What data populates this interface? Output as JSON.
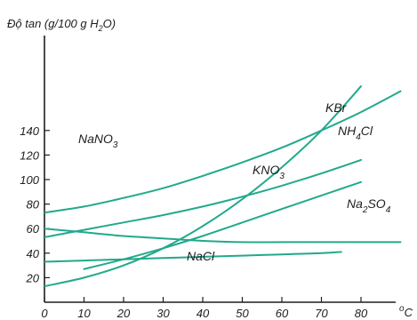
{
  "chart_data": {
    "type": "line",
    "ylabel": "Độ tan (g/100 g H2O)",
    "xunit": "°C",
    "xlim": [
      0,
      90
    ],
    "ylim": [
      0,
      160
    ],
    "x_ticks": [
      0,
      10,
      20,
      30,
      40,
      50,
      60,
      70,
      80
    ],
    "y_ticks": [
      20,
      40,
      60,
      80,
      100,
      120,
      140
    ],
    "line_color": "#22a98c",
    "series": [
      {
        "name": "NaNO3",
        "x": [
          0,
          10,
          20,
          30,
          40,
          50,
          60,
          70,
          80,
          90
        ],
        "y": [
          73,
          78,
          85,
          93,
          103,
          114,
          126,
          140,
          155,
          172
        ]
      },
      {
        "name": "KBr",
        "x": [
          0,
          10,
          20,
          30,
          40,
          50,
          60,
          70,
          80
        ],
        "y": [
          53,
          59,
          65,
          71,
          78,
          86,
          95,
          105,
          116
        ]
      },
      {
        "name": "NH4Cl",
        "x": [
          10,
          20,
          30,
          40,
          50,
          60,
          70,
          80
        ],
        "y": [
          27,
          35,
          44,
          54,
          65,
          76,
          87,
          98
        ]
      },
      {
        "name": "KNO3",
        "x": [
          0,
          10,
          20,
          30,
          40,
          50,
          60,
          70,
          80
        ],
        "y": [
          13,
          20,
          30,
          44,
          62,
          84,
          110,
          140,
          176
        ]
      },
      {
        "name": "Na2SO4",
        "x": [
          0,
          10,
          20,
          30,
          40,
          50,
          60,
          70,
          80,
          90
        ],
        "y": [
          60,
          57,
          54,
          52,
          50,
          49,
          49,
          49,
          49,
          49
        ]
      },
      {
        "name": "NaCl",
        "x": [
          0,
          10,
          20,
          30,
          40,
          50,
          60,
          70,
          75
        ],
        "y": [
          33,
          34,
          35,
          36,
          37,
          38,
          39,
          40,
          41
        ]
      }
    ]
  }
}
